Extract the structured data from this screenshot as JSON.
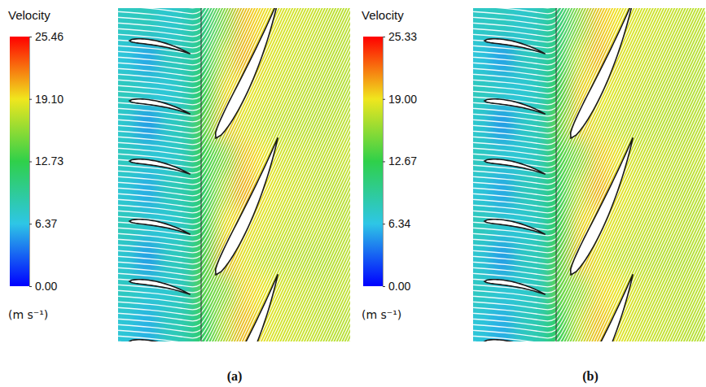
{
  "chart_data": [
    {
      "type": "heatmap",
      "panel_label": "(a)",
      "colorbar": {
        "title": "Velocity",
        "unit": "(m s⁻¹)",
        "range": [
          0,
          25.46
        ],
        "ticks": [
          {
            "value": 0,
            "label": "0.00"
          },
          6.37,
          12.73,
          {
            "value": 19.1,
            "label": "19.10"
          },
          25.46
        ]
      },
      "cells": [
        [
          7.8,
          8.2,
          7.1,
          8.0,
          10.5,
          15.2,
          20.4,
          19.3,
          18.2,
          18.0,
          17.6,
          17.2
        ],
        [
          6.9,
          5.2,
          7.9,
          8.3,
          11.2,
          17.4,
          20.8,
          18.6,
          18.1,
          17.8,
          17.4,
          17.1
        ],
        [
          8.1,
          7.4,
          6.8,
          8.1,
          12.6,
          19.6,
          19.2,
          18.3,
          17.9,
          17.4,
          17.2,
          17.0
        ],
        [
          7.4,
          4.8,
          7.6,
          8.4,
          14.1,
          20.2,
          18.4,
          17.8,
          17.5,
          17.3,
          17.1,
          17.3
        ],
        [
          8.0,
          7.2,
          7.0,
          8.2,
          13.2,
          15.0,
          20.3,
          19.1,
          18.0,
          17.8,
          17.4,
          17.6
        ],
        [
          7.1,
          5.4,
          8.0,
          8.6,
          11.8,
          17.1,
          21.0,
          18.9,
          18.2,
          17.9,
          17.3,
          17.2
        ],
        [
          8.2,
          7.3,
          6.9,
          8.0,
          12.4,
          19.4,
          19.4,
          18.4,
          17.8,
          17.5,
          17.6,
          17.1
        ],
        [
          7.3,
          4.9,
          7.8,
          8.3,
          13.6,
          20.5,
          18.6,
          17.6,
          17.4,
          17.2,
          17.0,
          17.2
        ],
        [
          7.9,
          7.1,
          7.2,
          8.1,
          14.2,
          15.4,
          19.8,
          19.0,
          18.1,
          17.7,
          17.3,
          17.4
        ],
        [
          7.0,
          5.6,
          7.9,
          8.7,
          12.0,
          17.2,
          20.6,
          18.7,
          18.0,
          17.8,
          17.4,
          17.1
        ]
      ]
    },
    {
      "type": "heatmap",
      "panel_label": "(b)",
      "colorbar": {
        "title": "Velocity",
        "unit": "(m s⁻¹)",
        "range": [
          0,
          25.33
        ],
        "ticks": [
          {
            "value": 0,
            "label": "0.00"
          },
          6.34,
          12.67,
          {
            "value": 19,
            "label": "19.00"
          },
          25.33
        ]
      },
      "cells": [
        [
          7.6,
          8.0,
          7.2,
          8.1,
          10.8,
          15.6,
          20.1,
          19.0,
          18.0,
          17.8,
          17.5,
          17.2
        ],
        [
          6.8,
          5.0,
          7.8,
          8.2,
          11.4,
          17.8,
          20.5,
          18.4,
          17.9,
          17.6,
          17.3,
          17.0
        ],
        [
          8.0,
          7.3,
          6.9,
          8.0,
          12.9,
          19.8,
          18.9,
          18.1,
          17.7,
          17.3,
          17.1,
          16.9
        ],
        [
          7.3,
          4.7,
          7.5,
          8.3,
          14.3,
          19.9,
          18.2,
          17.6,
          17.3,
          17.2,
          17.0,
          17.1
        ],
        [
          7.9,
          7.1,
          7.1,
          8.1,
          13.4,
          15.3,
          20.0,
          18.8,
          17.8,
          17.6,
          17.3,
          17.4
        ],
        [
          7.0,
          5.2,
          7.9,
          8.5,
          12.0,
          17.5,
          20.7,
          18.6,
          18.0,
          17.7,
          17.2,
          17.1
        ],
        [
          8.1,
          7.2,
          7.0,
          8.0,
          12.7,
          19.6,
          19.1,
          18.2,
          17.6,
          17.4,
          17.4,
          17.0
        ],
        [
          7.2,
          4.8,
          7.7,
          8.2,
          13.8,
          20.2,
          18.4,
          17.5,
          17.3,
          17.1,
          16.9,
          17.0
        ],
        [
          7.8,
          7.0,
          7.3,
          8.0,
          14.4,
          15.7,
          19.5,
          18.8,
          17.9,
          17.5,
          17.2,
          17.2
        ],
        [
          6.9,
          5.4,
          7.8,
          8.6,
          12.2,
          17.6,
          20.3,
          18.5,
          17.8,
          17.6,
          17.3,
          17.0
        ]
      ]
    }
  ]
}
